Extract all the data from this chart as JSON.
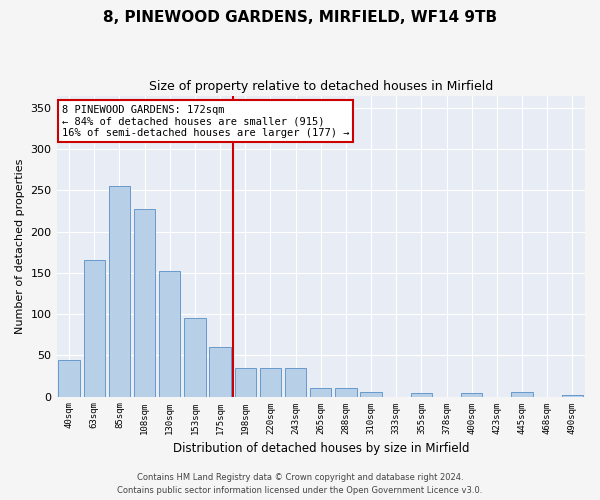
{
  "title": "8, PINEWOOD GARDENS, MIRFIELD, WF14 9TB",
  "subtitle": "Size of property relative to detached houses in Mirfield",
  "xlabel": "Distribution of detached houses by size in Mirfield",
  "ylabel": "Number of detached properties",
  "categories": [
    "40sqm",
    "63sqm",
    "85sqm",
    "108sqm",
    "130sqm",
    "153sqm",
    "175sqm",
    "198sqm",
    "220sqm",
    "243sqm",
    "265sqm",
    "288sqm",
    "310sqm",
    "333sqm",
    "355sqm",
    "378sqm",
    "400sqm",
    "423sqm",
    "445sqm",
    "468sqm",
    "490sqm"
  ],
  "values": [
    44,
    165,
    255,
    228,
    152,
    95,
    60,
    35,
    35,
    35,
    10,
    10,
    5,
    0,
    4,
    0,
    4,
    0,
    5,
    0,
    2
  ],
  "bar_color": "#b8cfe8",
  "bar_edge_color": "#6699cc",
  "vline_x": 6.5,
  "vline_color": "#cc0000",
  "annotation_text": "8 PINEWOOD GARDENS: 172sqm\n← 84% of detached houses are smaller (915)\n16% of semi-detached houses are larger (177) →",
  "annotation_box_color": "#ffffff",
  "annotation_box_edge": "#cc0000",
  "ylim": [
    0,
    365
  ],
  "yticks": [
    0,
    50,
    100,
    150,
    200,
    250,
    300,
    350
  ],
  "background_color": "#e8edf5",
  "grid_color": "#ffffff",
  "footer1": "Contains HM Land Registry data © Crown copyright and database right 2024.",
  "footer2": "Contains public sector information licensed under the Open Government Licence v3.0."
}
